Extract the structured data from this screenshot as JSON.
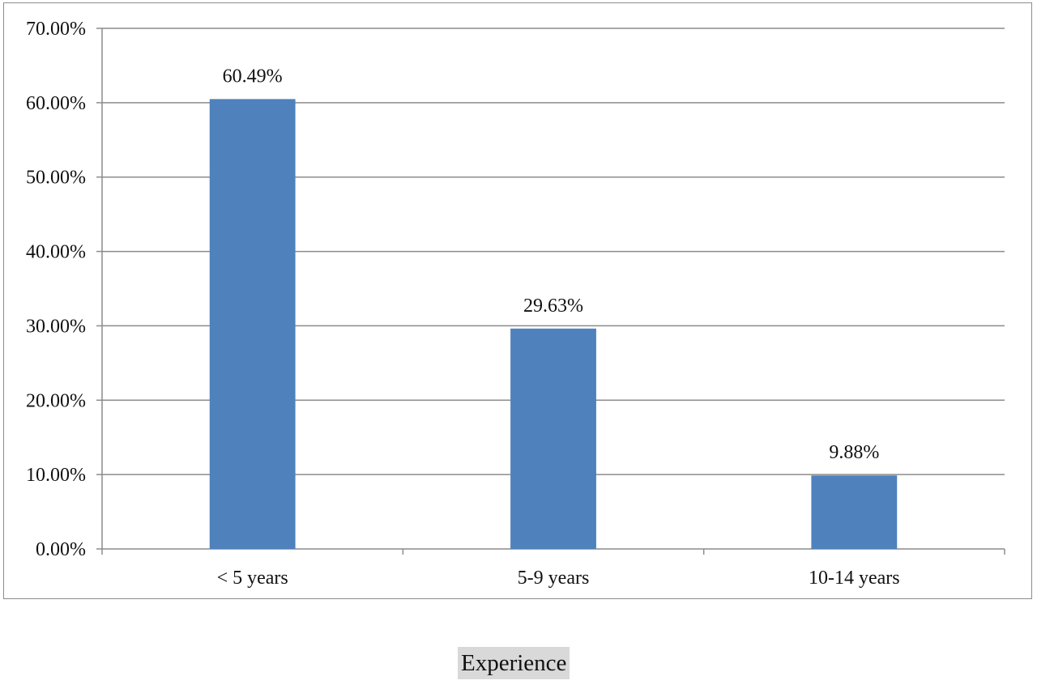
{
  "chart_data": {
    "type": "bar",
    "title": "",
    "xlabel": "Experience",
    "ylabel": "",
    "categories": [
      "< 5 years",
      "5-9 years",
      "10-14 years"
    ],
    "values": [
      60.49,
      29.63,
      9.88
    ],
    "data_labels": [
      "60.49%",
      "29.63%",
      "9.88%"
    ],
    "ylim": [
      0,
      70
    ],
    "yticks": [
      0,
      10,
      20,
      30,
      40,
      50,
      60,
      70
    ],
    "ytick_labels": [
      "0.00%",
      "10.00%",
      "20.00%",
      "30.00%",
      "40.00%",
      "50.00%",
      "60.00%",
      "70.00%"
    ],
    "grid": true,
    "legend": "none",
    "colors": {
      "bar": "#4f81bd",
      "gridline": "#8c8c8c",
      "frame": "#8c8c8c"
    }
  }
}
